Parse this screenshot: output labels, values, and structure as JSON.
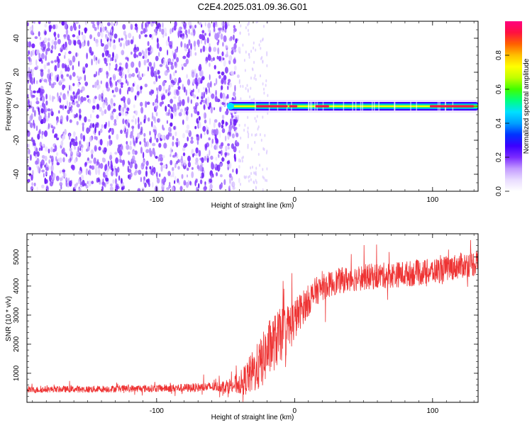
{
  "title": "C2E4.2025.031.09.36.G01",
  "colors": {
    "snr_line": "#ee3333",
    "colormap": [
      "#ffffff",
      "#e9dcff",
      "#c39bff",
      "#7b2bff",
      "#3b00ff",
      "#0033ff",
      "#00a0ff",
      "#00e0ff",
      "#00ff80",
      "#40ff00",
      "#c0ff00",
      "#ffff00",
      "#ffbf00",
      "#ff6000",
      "#ff1040",
      "#ff0080"
    ]
  },
  "chart_data": [
    {
      "type": "heatmap",
      "title": "C2E4.2025.031.09.36.G01",
      "xlabel": "Height of straight line (km)",
      "ylabel": "Frequency (Hz)",
      "xlim": [
        -194,
        133
      ],
      "ylim": [
        -50,
        50
      ],
      "xticks": [
        -100,
        0,
        100
      ],
      "xtick_labels": [
        "-100",
        "0",
        "100"
      ],
      "yticks": [
        -40,
        -20,
        0,
        20,
        40
      ],
      "ytick_labels": [
        "-40",
        "-20",
        "0",
        "20",
        "40"
      ],
      "noise_region_x": [
        -194,
        -40
      ],
      "signal_start_x": -48,
      "signal_frequency_hz": 0,
      "signal_bright_segments_x": [
        [
          -28,
          -5
        ],
        [
          -4,
          2
        ],
        [
          15,
          25
        ],
        [
          98,
          130
        ]
      ],
      "colorbar": {
        "label": "Normalized spectral amplitude",
        "range": [
          0.0,
          1.0
        ],
        "ticks": [
          0.0,
          0.2,
          0.4,
          0.6,
          0.8
        ],
        "tick_labels": [
          "0.0",
          "0.2",
          "0.4",
          "0.6",
          "0.8"
        ]
      }
    },
    {
      "type": "line",
      "xlabel": "Height of straight line (km)",
      "ylabel": "SNR (10 * v/v)",
      "xlim": [
        -194,
        133
      ],
      "ylim": [
        0,
        5800
      ],
      "xticks": [
        -100,
        0,
        100
      ],
      "xtick_labels": [
        "-100",
        "0",
        "100"
      ],
      "yticks": [
        1000,
        2000,
        3000,
        4000,
        5000
      ],
      "ytick_labels": [
        "1000",
        "2000",
        "3000",
        "4000",
        "5000"
      ],
      "series": [
        {
          "x": [
            -194,
            -175,
            -150,
            -125,
            -100,
            -75,
            -55,
            -45,
            -38,
            -32,
            -25,
            -18,
            -10,
            -5,
            0,
            5,
            10,
            15,
            20,
            30,
            40,
            50,
            60,
            70,
            80,
            90,
            100,
            110,
            120,
            133
          ],
          "y": [
            420,
            450,
            450,
            470,
            480,
            500,
            540,
            580,
            700,
            950,
            1300,
            1900,
            2300,
            2500,
            2850,
            3200,
            3500,
            3800,
            3950,
            4150,
            4250,
            4300,
            4350,
            4380,
            4420,
            4450,
            4500,
            4600,
            4700,
            4800
          ],
          "noise_amplitude": [
            110,
            110,
            120,
            120,
            130,
            150,
            180,
            300,
            450,
            700,
            900,
            1000,
            950,
            900,
            750,
            600,
            550,
            500,
            450,
            450,
            450,
            450,
            450,
            450,
            450,
            450,
            450,
            450,
            450,
            450
          ]
        }
      ]
    }
  ]
}
